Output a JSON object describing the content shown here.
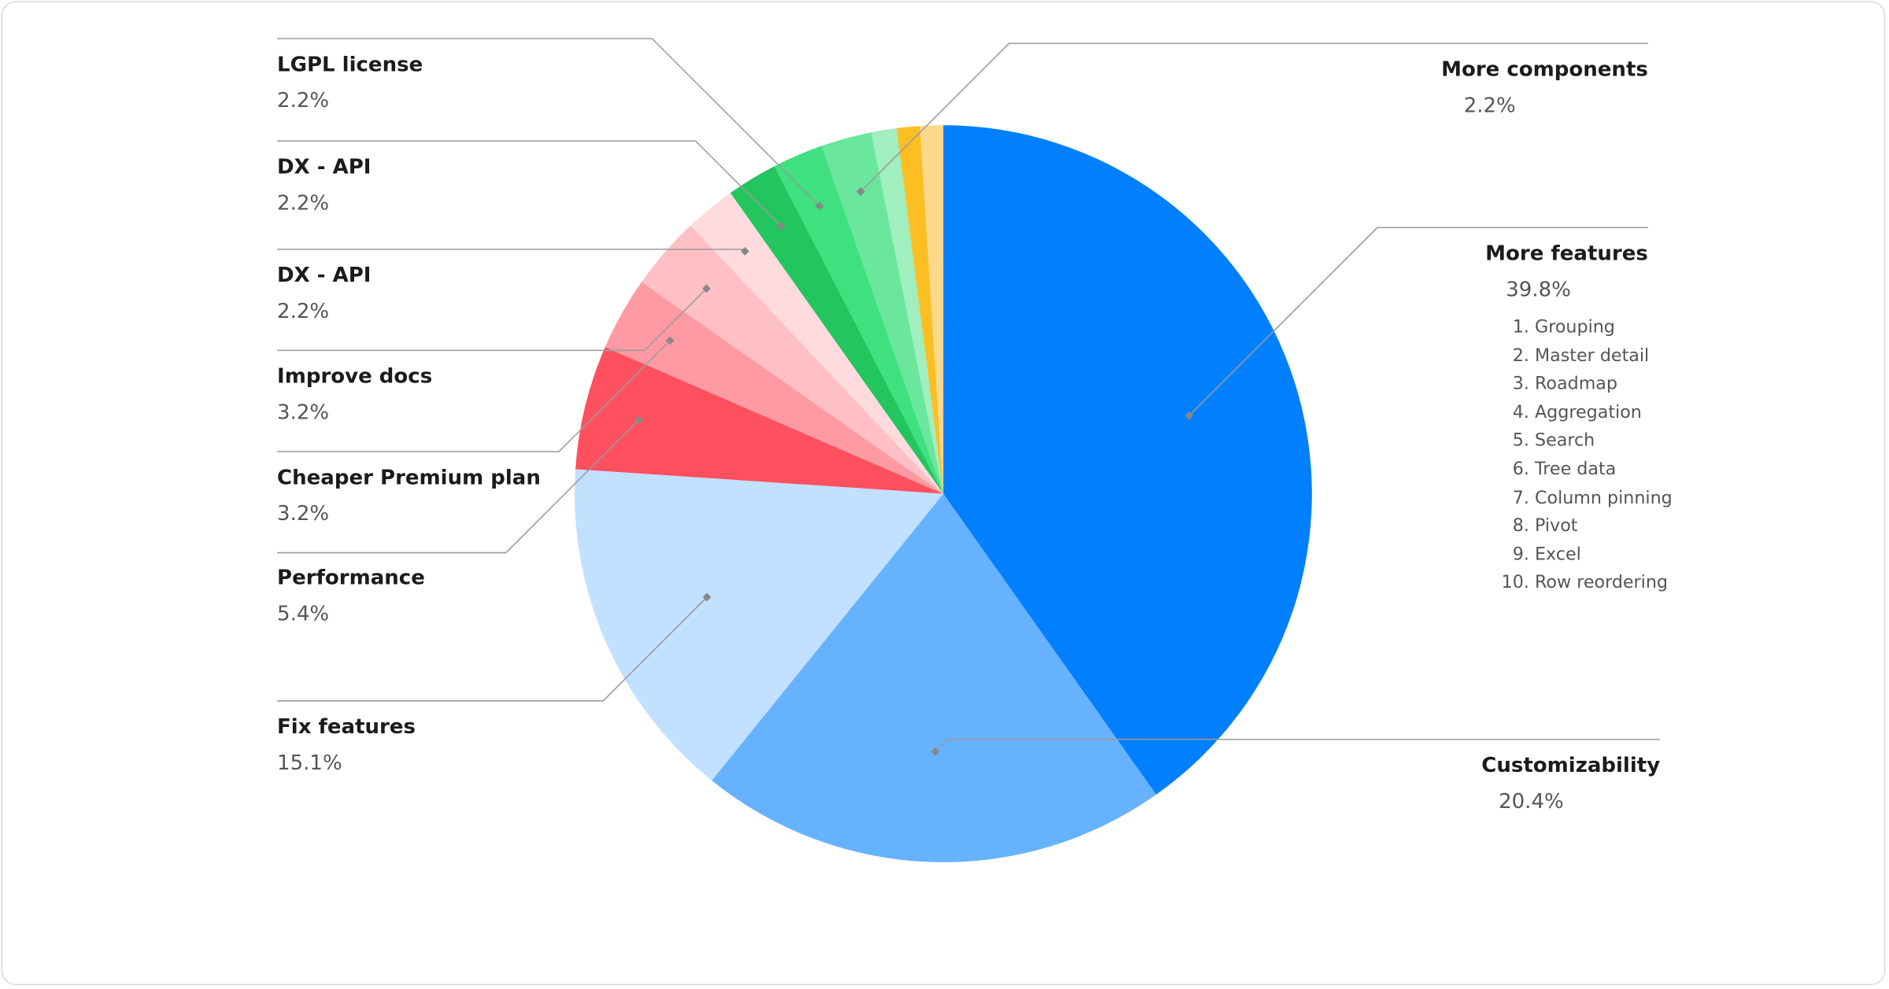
{
  "chart_data": {
    "type": "pie",
    "categories": [
      "More features",
      "Customizability",
      "Fix features",
      "Performance",
      "Cheaper Premium plan",
      "Improve docs",
      "DX - API",
      "DX - API",
      "LGPL license",
      "More components",
      null,
      null,
      null
    ],
    "values": [
      39.8,
      20.4,
      15.1,
      5.4,
      3.2,
      3.2,
      2.2,
      2.2,
      2.2,
      2.2,
      1.1,
      1.0,
      1.0
    ],
    "value_labels": [
      "39.8%",
      "20.4%",
      "15.1%",
      "5.4%",
      "3.2%",
      "3.2%",
      "2.2%",
      "2.2%",
      "2.2%",
      "2.2%",
      null,
      null,
      null
    ],
    "colors": [
      "#007fff",
      "#66b2ff",
      "#c2e0ff",
      "#ff505f",
      "#ff99a2",
      "#ffc0c5",
      "#ffdbde",
      "#22c55e",
      "#3ee07f",
      "#6ae79c",
      "#a1eebf",
      "#fbbf24",
      "#fcd98a"
    ],
    "list_items": [
      "Grouping",
      "Master detail",
      "Roadmap",
      "Aggregation",
      "Search",
      "Tree data",
      "Column pinning",
      "Pivot",
      "Excel",
      "Row reordering"
    ]
  }
}
